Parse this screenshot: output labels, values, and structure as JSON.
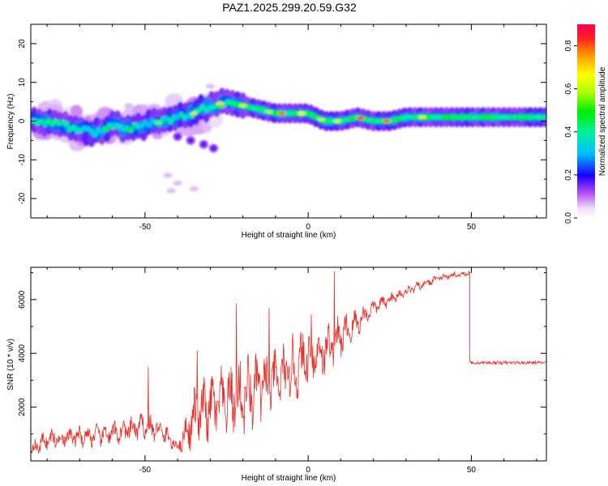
{
  "page": {
    "title": "PAZ1.2025.299.20.59.G32"
  },
  "chart_data": [
    {
      "type": "heatmap",
      "name": "spectrogram",
      "xlabel": "Height of straight line (km)",
      "ylabel": "Frequency (Hz)",
      "xlim": [
        -85,
        73
      ],
      "ylim": [
        -25,
        25
      ],
      "xticks": [
        -50,
        0,
        50
      ],
      "yticks": [
        -20,
        -10,
        0,
        10,
        20
      ],
      "xtick_labels": [
        "-50",
        "0",
        "50"
      ],
      "ytick_labels": [
        "-20",
        "-10",
        "0",
        "10",
        "20"
      ],
      "colorbar": {
        "label": "Normalized spectral amplitude",
        "range": [
          0,
          0.9
        ],
        "ticks": [
          0.0,
          0.2,
          0.4,
          0.6,
          0.8
        ],
        "tick_labels": [
          "0.0",
          "0.2",
          "0.4",
          "0.6",
          "0.8"
        ]
      },
      "ridge": {
        "x": [
          -82,
          -75,
          -70,
          -65,
          -60,
          -55,
          -50,
          -45,
          -40,
          -35,
          -30,
          -25,
          -20,
          -15,
          -10,
          -5,
          0,
          5,
          10,
          15,
          20,
          25,
          30,
          40,
          50,
          60,
          73
        ],
        "freq": [
          0,
          -1,
          -2,
          -3,
          -1,
          -2,
          -1,
          0,
          1,
          2,
          4,
          5,
          4,
          3,
          2,
          2,
          2,
          0,
          0,
          1,
          0,
          0,
          1,
          1,
          1,
          1,
          1
        ]
      },
      "side_branch": {
        "x": [
          -40,
          -36,
          -32,
          -29
        ],
        "freq": [
          -4,
          -5,
          -6,
          -7
        ]
      }
    },
    {
      "type": "line",
      "name": "snr",
      "xlabel": "Height of straight line (km)",
      "ylabel": "SNR (10 * v/v)",
      "xlim": [
        -85,
        73
      ],
      "ylim": [
        0,
        7200
      ],
      "xticks": [
        -50,
        0,
        50
      ],
      "yticks": [
        2000,
        4000,
        6000
      ],
      "xtick_labels": [
        "-50",
        "0",
        "50"
      ],
      "ytick_labels": [
        "2000",
        "4000",
        "6000"
      ],
      "color": "#e8302b",
      "envelope": {
        "x": [
          -85,
          -80,
          -70,
          -60,
          -50,
          -45,
          -40,
          -35,
          -30,
          -25,
          -20,
          -15,
          -10,
          -5,
          0,
          5,
          10,
          20,
          30,
          40,
          49.5
        ],
        "mean": [
          400,
          800,
          900,
          1000,
          1300,
          1100,
          500,
          1600,
          2000,
          2200,
          2400,
          2700,
          3000,
          3300,
          3900,
          4100,
          4600,
          5700,
          6300,
          6800,
          7000
        ],
        "amplitude": [
          300,
          400,
          400,
          450,
          500,
          500,
          250,
          1100,
          1300,
          1300,
          1500,
          1400,
          1100,
          1300,
          1200,
          1000,
          800,
          300,
          200,
          150,
          120
        ]
      },
      "drop": {
        "x": 49.5,
        "from": 7000,
        "to": 3700
      },
      "tail": {
        "x_start": 49.5,
        "x_end": 73,
        "mean": 3650,
        "amplitude": 60
      },
      "spikes": [
        {
          "x": -49,
          "y": 3500
        },
        {
          "x": -34,
          "y": 4100
        },
        {
          "x": -22,
          "y": 5850
        },
        {
          "x": -12,
          "y": 5700
        },
        {
          "x": 1,
          "y": 5450
        },
        {
          "x": 8,
          "y": 7050
        }
      ]
    }
  ]
}
